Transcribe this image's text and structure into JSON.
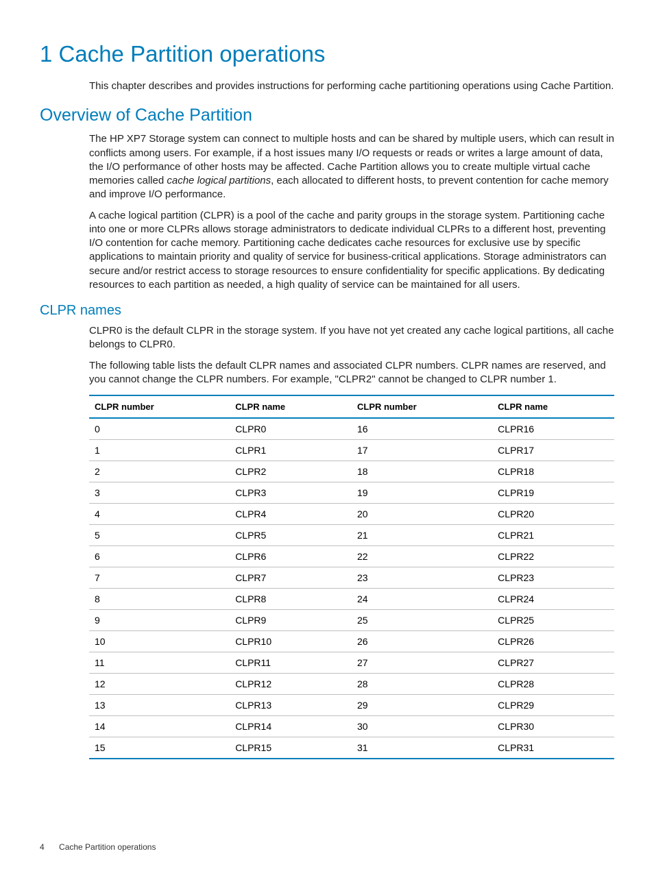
{
  "chapter": {
    "title": "1 Cache Partition operations",
    "intro": "This chapter describes and provides instructions for performing cache partitioning operations using Cache Partition."
  },
  "overview": {
    "title": "Overview of Cache Partition",
    "p1_a": "The HP XP7 Storage system can connect to multiple hosts and can be shared by multiple users, which can result in conflicts among users. For example, if a host issues many I/O requests or reads or writes a large amount of data, the I/O performance of other hosts may be affected. Cache Partition allows you to create multiple virtual cache memories called ",
    "p1_em": "cache logical partitions",
    "p1_b": ", each allocated to different hosts, to prevent contention for cache memory and improve I/O performance.",
    "p2": "A cache logical partition (CLPR) is a pool of the cache and parity groups in the storage system. Partitioning cache into one or more CLPRs allows storage administrators to dedicate individual CLPRs to a different host, preventing I/O contention for cache memory. Partitioning cache dedicates cache resources for exclusive use by specific applications to maintain priority and quality of service for business-critical applications. Storage administrators can secure and/or restrict access to storage resources to ensure confidentiality for specific applications. By dedicating resources to each partition as needed, a high quality of service can be maintained for all users."
  },
  "clpr": {
    "title": "CLPR names",
    "p1": "CLPR0 is the default CLPR in the storage system. If you have not yet created any cache logical partitions, all cache belongs to CLPR0.",
    "p2": "The following table lists the default CLPR names and associated CLPR numbers. CLPR names are reserved, and you cannot change the CLPR numbers. For example, \"CLPR2\" cannot be changed to CLPR number 1."
  },
  "table": {
    "columns": [
      "CLPR number",
      "CLPR name",
      "CLPR number",
      "CLPR name"
    ],
    "rows": [
      [
        "0",
        "CLPR0",
        "16",
        "CLPR16"
      ],
      [
        "1",
        "CLPR1",
        "17",
        "CLPR17"
      ],
      [
        "2",
        "CLPR2",
        "18",
        "CLPR18"
      ],
      [
        "3",
        "CLPR3",
        "19",
        "CLPR19"
      ],
      [
        "4",
        "CLPR4",
        "20",
        "CLPR20"
      ],
      [
        "5",
        "CLPR5",
        "21",
        "CLPR21"
      ],
      [
        "6",
        "CLPR6",
        "22",
        "CLPR22"
      ],
      [
        "7",
        "CLPR7",
        "23",
        "CLPR23"
      ],
      [
        "8",
        "CLPR8",
        "24",
        "CLPR24"
      ],
      [
        "9",
        "CLPR9",
        "25",
        "CLPR25"
      ],
      [
        "10",
        "CLPR10",
        "26",
        "CLPR26"
      ],
      [
        "11",
        "CLPR11",
        "27",
        "CLPR27"
      ],
      [
        "12",
        "CLPR12",
        "28",
        "CLPR28"
      ],
      [
        "13",
        "CLPR13",
        "29",
        "CLPR29"
      ],
      [
        "14",
        "CLPR14",
        "30",
        "CLPR30"
      ],
      [
        "15",
        "CLPR15",
        "31",
        "CLPR31"
      ]
    ],
    "styling": {
      "border_color": "#007dba",
      "row_border_color": "#bfbfbf",
      "header_fontweight": "bold",
      "cell_fontsize": 14
    }
  },
  "footer": {
    "page_number": "4",
    "chapter_ref": "Cache Partition operations"
  },
  "colors": {
    "heading": "#007dba",
    "text": "#222222",
    "background": "#ffffff"
  }
}
